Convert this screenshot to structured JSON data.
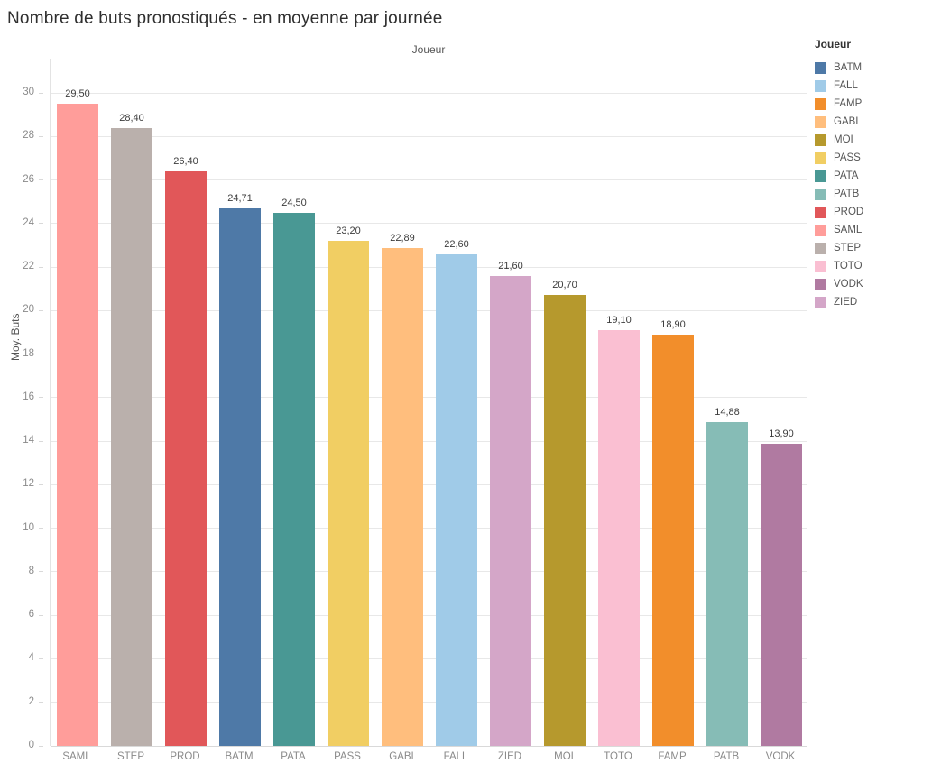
{
  "title": "Nombre de buts pronostiqués - en moyenne par journée",
  "chart_data": {
    "type": "bar",
    "title": "Nombre de buts pronostiqués - en moyenne par journée",
    "xlabel": "Joueur",
    "ylabel": "Moy. Buts",
    "ylim": [
      0,
      30
    ],
    "ytick_step": 2,
    "grid": true,
    "legend_position": "right",
    "categories": [
      "SAML",
      "STEP",
      "PROD",
      "BATM",
      "PATA",
      "PASS",
      "GABI",
      "FALL",
      "ZIED",
      "MOI",
      "TOTO",
      "FAMP",
      "PATB",
      "VODK"
    ],
    "values": [
      29.5,
      28.4,
      26.4,
      24.71,
      24.5,
      23.2,
      22.89,
      22.6,
      21.6,
      20.7,
      19.1,
      18.9,
      14.88,
      13.9
    ],
    "value_labels": [
      "29,50",
      "28,40",
      "26,40",
      "24,71",
      "24,50",
      "23,20",
      "22,89",
      "22,60",
      "21,60",
      "20,70",
      "19,10",
      "18,90",
      "14,88",
      "13,90"
    ]
  },
  "legend": {
    "title": "Joueur",
    "items": [
      {
        "label": "BATM",
        "color": "#4E79A7"
      },
      {
        "label": "FALL",
        "color": "#A0CBE8"
      },
      {
        "label": "FAMP",
        "color": "#F28E2B"
      },
      {
        "label": "GABI",
        "color": "#FFBE7D"
      },
      {
        "label": "MOI",
        "color": "#B6992D"
      },
      {
        "label": "PASS",
        "color": "#F1CE63"
      },
      {
        "label": "PATA",
        "color": "#499894"
      },
      {
        "label": "PATB",
        "color": "#86BCB6"
      },
      {
        "label": "PROD",
        "color": "#E15759"
      },
      {
        "label": "SAML",
        "color": "#FF9D9A"
      },
      {
        "label": "STEP",
        "color": "#BAB0AC"
      },
      {
        "label": "TOTO",
        "color": "#FABFD2"
      },
      {
        "label": "VODK",
        "color": "#B07AA1"
      },
      {
        "label": "ZIED",
        "color": "#D4A6C8"
      }
    ]
  }
}
